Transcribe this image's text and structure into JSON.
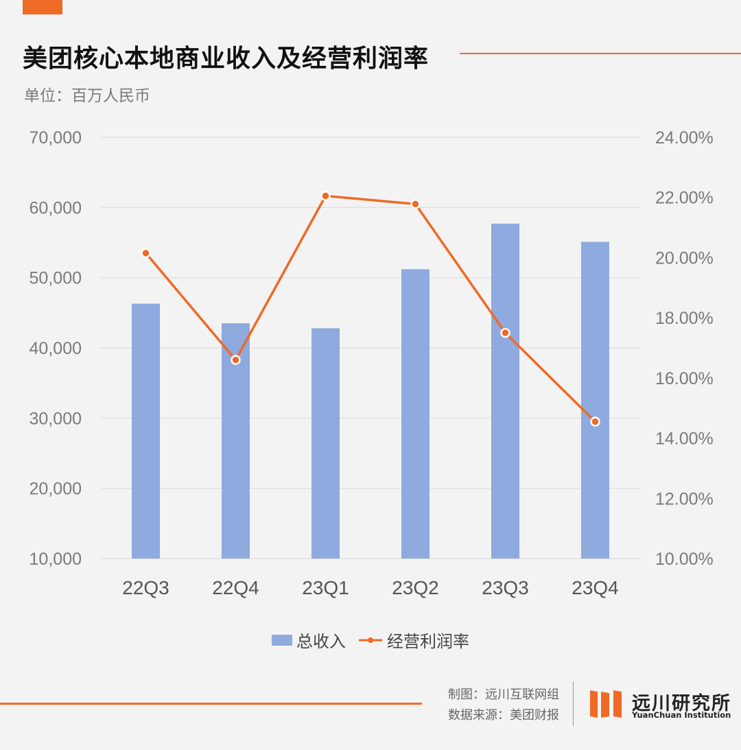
{
  "header": {
    "title": "美团核心本地商业收入及经营利润率",
    "subtitle": "单位：百万人民币"
  },
  "colors": {
    "accent": "#ef6a25",
    "bar": "#8eaadf",
    "grid": "#dcdcdc",
    "axis_text": "#7a7a7a",
    "category_text": "#555555"
  },
  "chart_data": {
    "type": "bar+line",
    "categories": [
      "22Q3",
      "22Q4",
      "23Q1",
      "23Q2",
      "23Q3",
      "23Q4"
    ],
    "series": [
      {
        "name": "总收入",
        "type": "bar",
        "axis": "left",
        "values": [
          46300,
          43500,
          42800,
          51200,
          57700,
          55100
        ]
      },
      {
        "name": "经营利润率",
        "type": "line",
        "axis": "right",
        "values": [
          20.15,
          16.6,
          22.05,
          21.78,
          17.5,
          14.55
        ]
      }
    ],
    "y_left": {
      "min": 10000,
      "max": 70000,
      "ticks": [
        10000,
        20000,
        30000,
        40000,
        50000,
        60000,
        70000
      ],
      "tick_labels": [
        "10,000",
        "20,000",
        "30,000",
        "40,000",
        "50,000",
        "60,000",
        "70,000"
      ]
    },
    "y_right": {
      "min": 10,
      "max": 24,
      "ticks": [
        10,
        12,
        14,
        16,
        18,
        20,
        22,
        24
      ],
      "tick_labels": [
        "10.00%",
        "12.00%",
        "14.00%",
        "16.00%",
        "18.00%",
        "20.00%",
        "22.00%",
        "24.00%"
      ]
    },
    "grid": true,
    "legend_position": "bottom-center"
  },
  "legend": {
    "bar_label": "总收入",
    "line_label": "经营利润率"
  },
  "footer": {
    "made_by": "制图：远川互联网组",
    "source": "数据来源：美团财报",
    "logo_cn": "远川研究所",
    "logo_en": "YuanChuan Institution"
  }
}
